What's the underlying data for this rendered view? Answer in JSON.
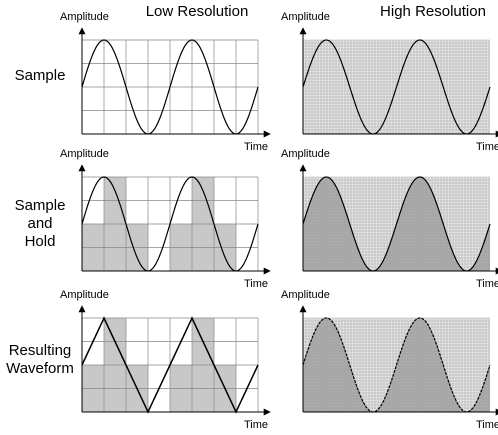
{
  "columns": [
    "Low Resolution",
    "High Resolution"
  ],
  "rows": [
    {
      "label": [
        "Sample"
      ]
    },
    {
      "label": [
        "Sample",
        "and",
        "Hold"
      ]
    },
    {
      "label": [
        "Resulting",
        "Waveform"
      ]
    }
  ],
  "panels": [
    {
      "y_label": "Amplitude",
      "x_label": "Time"
    },
    {
      "y_label": "Amplitude",
      "x_label": "Time"
    },
    {
      "y_label": "Amplitude",
      "x_label": "Time"
    },
    {
      "y_label": "Amplitude",
      "x_label": "Time"
    },
    {
      "y_label": "Amplitude",
      "x_label": "Time"
    },
    {
      "y_label": "Amplitude",
      "x_label": "Time"
    }
  ]
}
